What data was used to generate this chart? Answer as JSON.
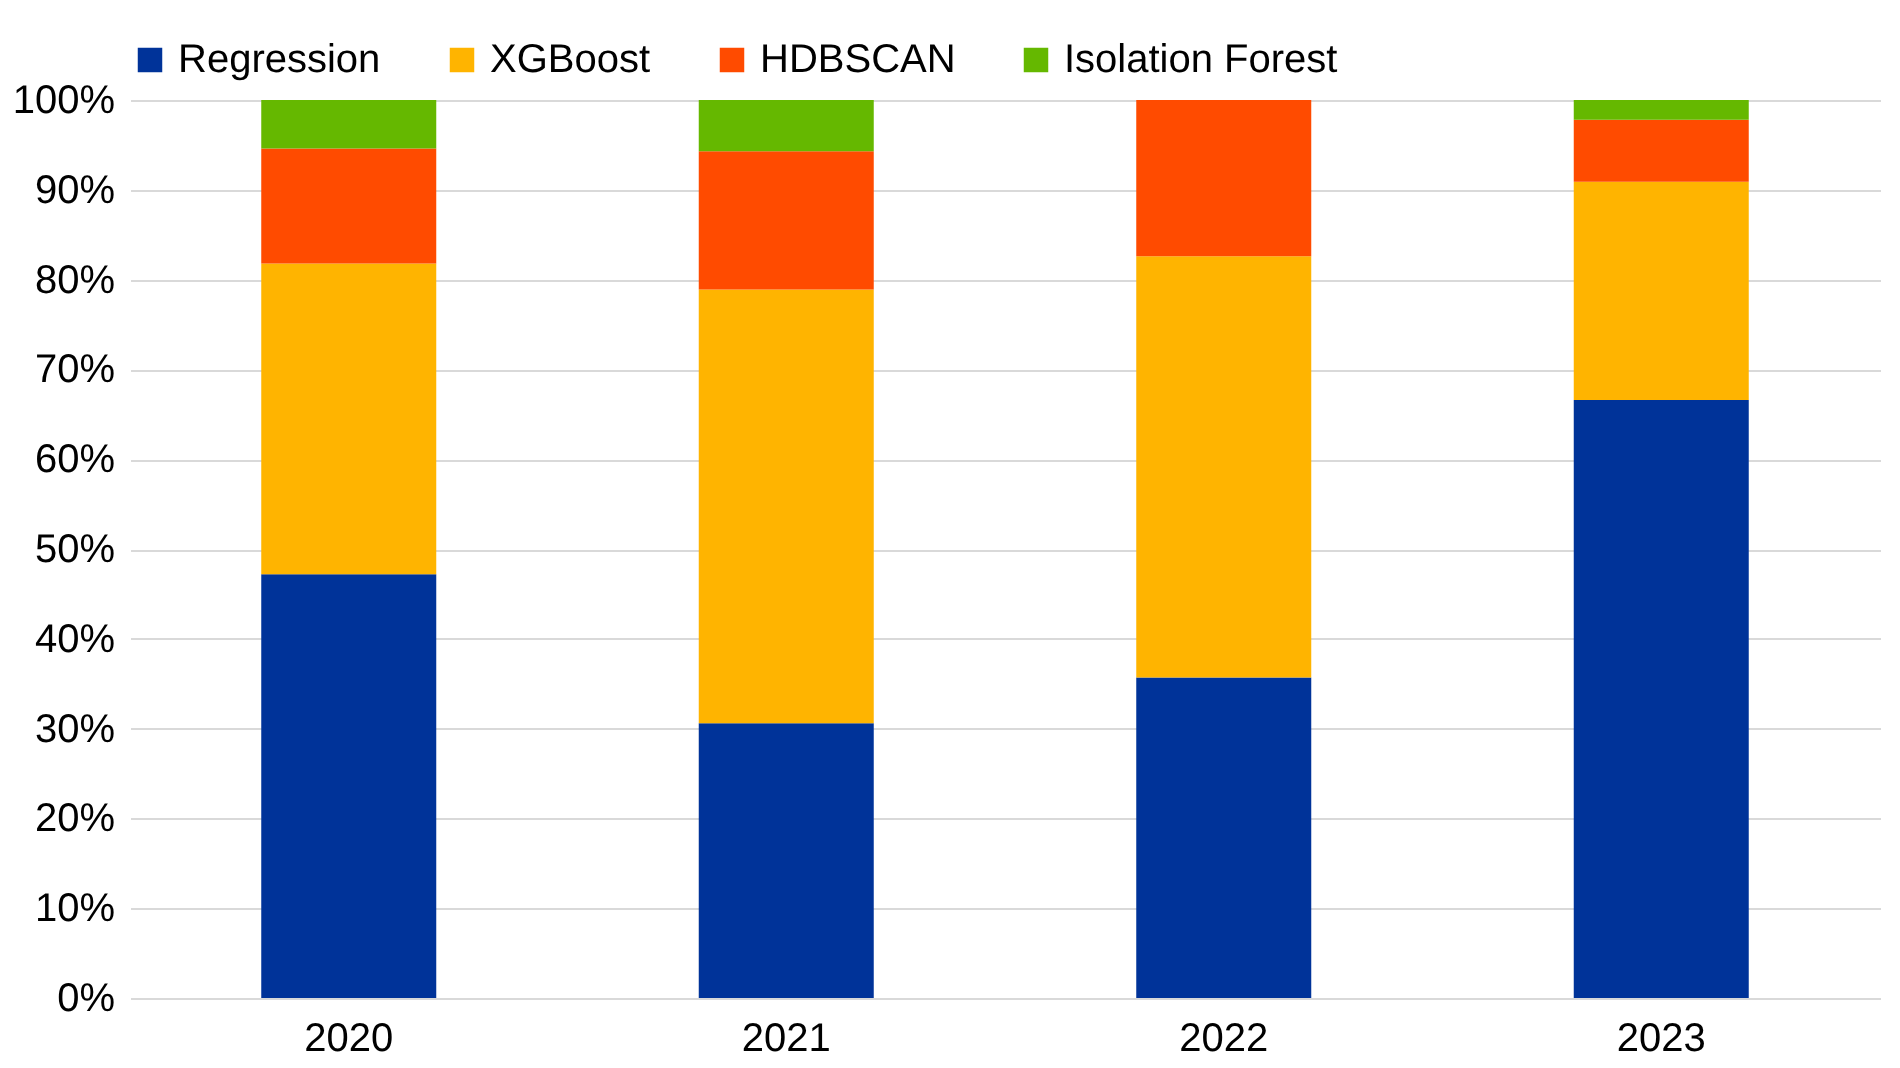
{
  "chart_data": {
    "type": "bar",
    "stacked": true,
    "categories": [
      "2020",
      "2021",
      "2022",
      "2023"
    ],
    "series": [
      {
        "name": "Regression",
        "color": "#003399",
        "values": [
          47.2,
          30.6,
          35.7,
          66.6
        ]
      },
      {
        "name": "XGBoost",
        "color": "#ffb400",
        "values": [
          34.6,
          48.3,
          46.9,
          24.3
        ]
      },
      {
        "name": "HDBSCAN",
        "color": "#ff4b00",
        "values": [
          12.8,
          15.4,
          17.4,
          6.9
        ]
      },
      {
        "name": "Isolation Forest",
        "color": "#65b800",
        "values": [
          5.4,
          5.7,
          0,
          2.2
        ]
      }
    ],
    "ylim": [
      0,
      100
    ],
    "yticks": [
      {
        "value": 0,
        "label": "0%"
      },
      {
        "value": 10,
        "label": "10%"
      },
      {
        "value": 20,
        "label": "20%"
      },
      {
        "value": 30,
        "label": "30%"
      },
      {
        "value": 40,
        "label": "40%"
      },
      {
        "value": 50,
        "label": "50%"
      },
      {
        "value": 60,
        "label": "60%"
      },
      {
        "value": 70,
        "label": "70%"
      },
      {
        "value": 80,
        "label": "80%"
      },
      {
        "value": 90,
        "label": "90%"
      },
      {
        "value": 100,
        "label": "100%"
      }
    ],
    "grid": "y",
    "legend": "top"
  }
}
